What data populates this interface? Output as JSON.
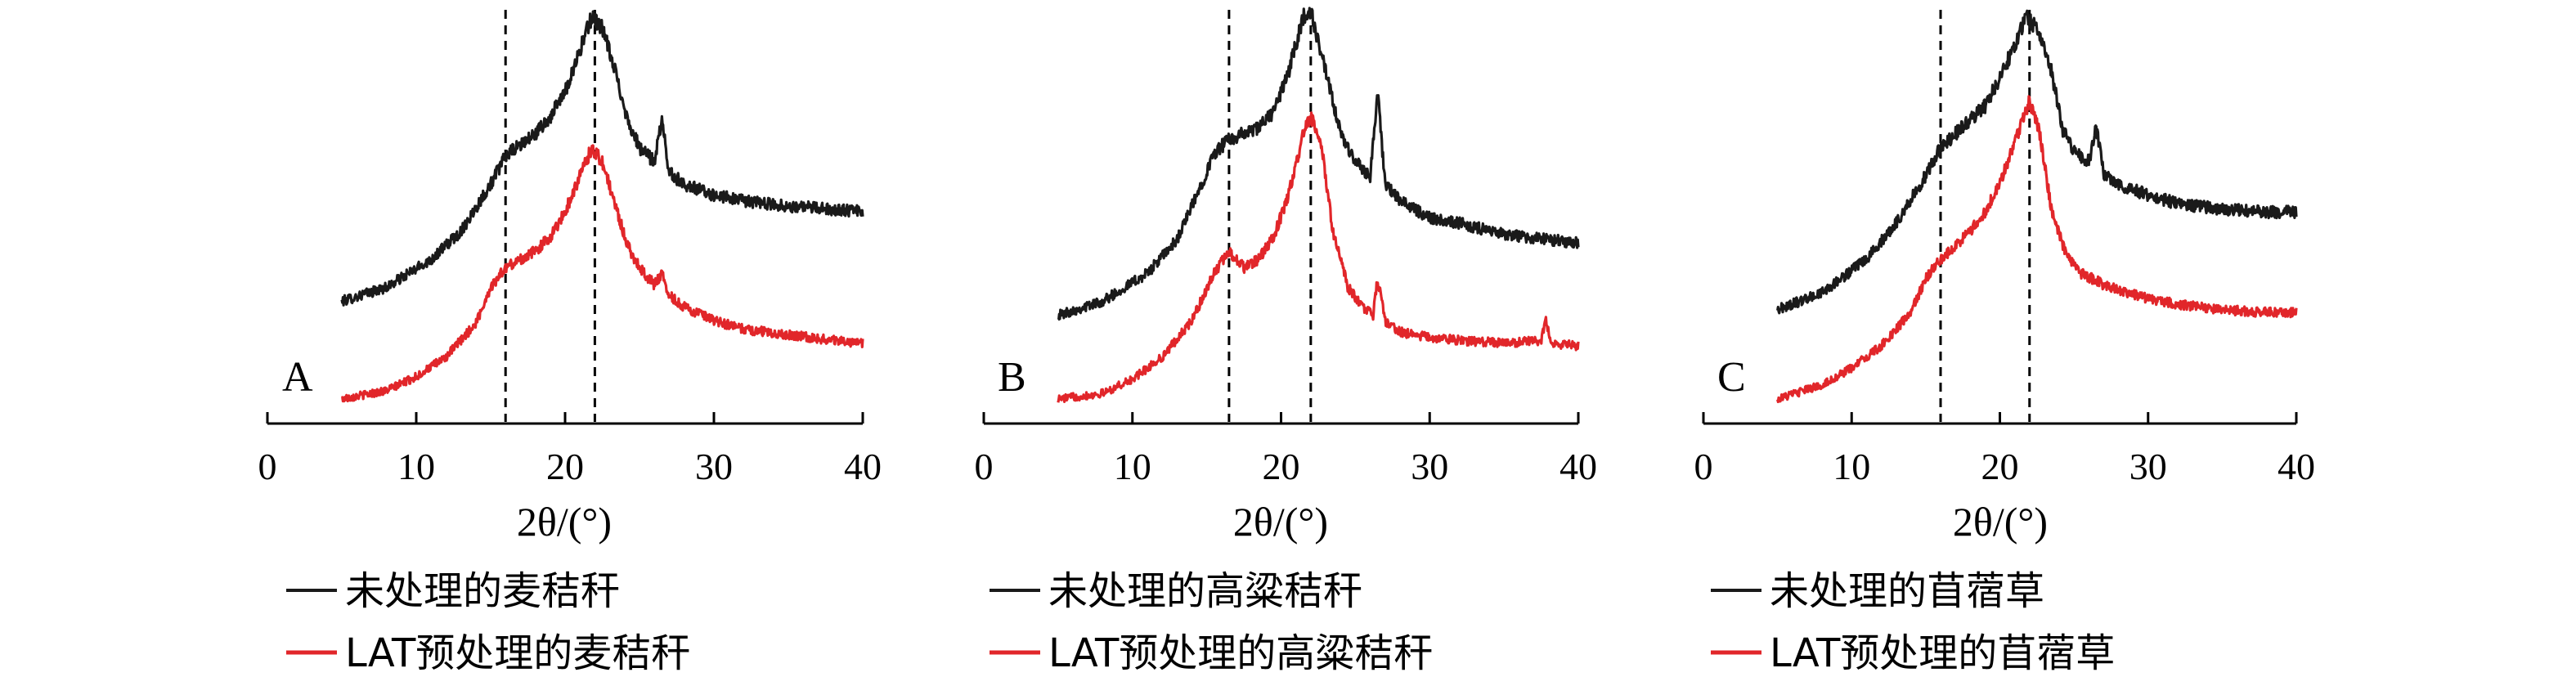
{
  "chart_data": [
    {
      "type": "line",
      "panel": "A",
      "xlabel": "2θ/(°)",
      "xlim": [
        0,
        40
      ],
      "xticks": [
        0,
        10,
        20,
        30,
        40
      ],
      "ylabel": "",
      "grid": false,
      "reference_lines_x": [
        16,
        22
      ],
      "series": [
        {
          "name": "未处理的麦秸秆",
          "color": "#1a1a1a",
          "points": [
            [
              5,
              0.4
            ],
            [
              8,
              0.45
            ],
            [
              11,
              0.55
            ],
            [
              13,
              0.65
            ],
            [
              15,
              0.82
            ],
            [
              16,
              0.92
            ],
            [
              17,
              0.96
            ],
            [
              18,
              1.0
            ],
            [
              19,
              1.06
            ],
            [
              20,
              1.15
            ],
            [
              21,
              1.3
            ],
            [
              21.8,
              1.42
            ],
            [
              22.5,
              1.38
            ],
            [
              23.5,
              1.2
            ],
            [
              24.2,
              1.05
            ],
            [
              25,
              0.95
            ],
            [
              26,
              0.9
            ],
            [
              26.5,
              1.05
            ],
            [
              27,
              0.86
            ],
            [
              28,
              0.82
            ],
            [
              30,
              0.78
            ],
            [
              32,
              0.76
            ],
            [
              35,
              0.74
            ],
            [
              38,
              0.73
            ],
            [
              40,
              0.72
            ]
          ]
        },
        {
          "name": "LAT预处理的麦秸秆",
          "color": "#e1262a",
          "points": [
            [
              5,
              0.05
            ],
            [
              8,
              0.08
            ],
            [
              10,
              0.13
            ],
            [
              12,
              0.2
            ],
            [
              14,
              0.32
            ],
            [
              15,
              0.45
            ],
            [
              16,
              0.52
            ],
            [
              17,
              0.55
            ],
            [
              18,
              0.58
            ],
            [
              19,
              0.63
            ],
            [
              20,
              0.72
            ],
            [
              21,
              0.85
            ],
            [
              21.8,
              0.95
            ],
            [
              22.5,
              0.9
            ],
            [
              23.5,
              0.72
            ],
            [
              24.2,
              0.6
            ],
            [
              25,
              0.52
            ],
            [
              26,
              0.46
            ],
            [
              26.5,
              0.5
            ],
            [
              27,
              0.42
            ],
            [
              28,
              0.38
            ],
            [
              30,
              0.33
            ],
            [
              32,
              0.3
            ],
            [
              35,
              0.28
            ],
            [
              38,
              0.26
            ],
            [
              40,
              0.25
            ]
          ]
        }
      ]
    },
    {
      "type": "line",
      "panel": "B",
      "xlabel": "2θ/(°)",
      "xlim": [
        0,
        40
      ],
      "xticks": [
        0,
        10,
        20,
        30,
        40
      ],
      "ylabel": "",
      "grid": false,
      "reference_lines_x": [
        16.5,
        22
      ],
      "series": [
        {
          "name": "未处理的高粱秸秆",
          "color": "#1a1a1a",
          "points": [
            [
              5,
              0.35
            ],
            [
              8,
              0.4
            ],
            [
              11,
              0.5
            ],
            [
              13,
              0.62
            ],
            [
              14.5,
              0.8
            ],
            [
              15.5,
              0.93
            ],
            [
              16.5,
              0.98
            ],
            [
              17.5,
              1.0
            ],
            [
              18.5,
              1.02
            ],
            [
              19.5,
              1.08
            ],
            [
              20.5,
              1.22
            ],
            [
              21.5,
              1.42
            ],
            [
              22,
              1.44
            ],
            [
              23,
              1.22
            ],
            [
              24,
              1.0
            ],
            [
              25,
              0.9
            ],
            [
              26,
              0.85
            ],
            [
              26.5,
              1.15
            ],
            [
              27,
              0.82
            ],
            [
              28,
              0.76
            ],
            [
              30,
              0.7
            ],
            [
              32,
              0.68
            ],
            [
              35,
              0.64
            ],
            [
              38,
              0.62
            ],
            [
              40,
              0.61
            ]
          ]
        },
        {
          "name": "LAT预处理的高粱秸秆",
          "color": "#e1262a",
          "points": [
            [
              5,
              0.05
            ],
            [
              8,
              0.07
            ],
            [
              10,
              0.12
            ],
            [
              12,
              0.2
            ],
            [
              14,
              0.33
            ],
            [
              15.5,
              0.5
            ],
            [
              16.5,
              0.58
            ],
            [
              17.5,
              0.52
            ],
            [
              18.5,
              0.55
            ],
            [
              19.5,
              0.63
            ],
            [
              20.5,
              0.78
            ],
            [
              21.5,
              1.0
            ],
            [
              22,
              1.06
            ],
            [
              22.7,
              0.96
            ],
            [
              23.5,
              0.65
            ],
            [
              24.5,
              0.45
            ],
            [
              25.5,
              0.38
            ],
            [
              26.2,
              0.35
            ],
            [
              26.5,
              0.48
            ],
            [
              27,
              0.33
            ],
            [
              28,
              0.29
            ],
            [
              30,
              0.27
            ],
            [
              32,
              0.26
            ],
            [
              35,
              0.25
            ],
            [
              37.5,
              0.26
            ],
            [
              37.8,
              0.34
            ],
            [
              38.2,
              0.25
            ],
            [
              40,
              0.24
            ]
          ]
        }
      ]
    },
    {
      "type": "line",
      "panel": "C",
      "xlabel": "2θ/(°)",
      "xlim": [
        0,
        40
      ],
      "xticks": [
        0,
        10,
        20,
        30,
        40
      ],
      "ylabel": "",
      "grid": false,
      "reference_lines_x": [
        16,
        22
      ],
      "series": [
        {
          "name": "未处理的苜蓿草",
          "color": "#1a1a1a",
          "points": [
            [
              5,
              0.37
            ],
            [
              8,
              0.43
            ],
            [
              11,
              0.55
            ],
            [
              13,
              0.68
            ],
            [
              15,
              0.85
            ],
            [
              16,
              0.95
            ],
            [
              17,
              1.0
            ],
            [
              18,
              1.05
            ],
            [
              19,
              1.1
            ],
            [
              20,
              1.2
            ],
            [
              21,
              1.32
            ],
            [
              21.8,
              1.42
            ],
            [
              22.5,
              1.38
            ],
            [
              23.5,
              1.22
            ],
            [
              24.2,
              1.02
            ],
            [
              25,
              0.94
            ],
            [
              26,
              0.9
            ],
            [
              26.5,
              1.02
            ],
            [
              27,
              0.86
            ],
            [
              28,
              0.82
            ],
            [
              30,
              0.78
            ],
            [
              32,
              0.75
            ],
            [
              35,
              0.73
            ],
            [
              38,
              0.72
            ],
            [
              40,
              0.72
            ]
          ]
        },
        {
          "name": "LAT预处理的苜蓿草",
          "color": "#e1262a",
          "points": [
            [
              5,
              0.05
            ],
            [
              8,
              0.1
            ],
            [
              10,
              0.16
            ],
            [
              12,
              0.24
            ],
            [
              14,
              0.36
            ],
            [
              15,
              0.48
            ],
            [
              16,
              0.55
            ],
            [
              17,
              0.6
            ],
            [
              18,
              0.65
            ],
            [
              19,
              0.72
            ],
            [
              20,
              0.82
            ],
            [
              21,
              0.97
            ],
            [
              22,
              1.12
            ],
            [
              22.7,
              1.0
            ],
            [
              23.5,
              0.72
            ],
            [
              24.5,
              0.56
            ],
            [
              25.5,
              0.5
            ],
            [
              27,
              0.46
            ],
            [
              28,
              0.44
            ],
            [
              30,
              0.41
            ],
            [
              32,
              0.39
            ],
            [
              35,
              0.37
            ],
            [
              38,
              0.36
            ],
            [
              40,
              0.36
            ]
          ]
        }
      ]
    }
  ],
  "panels": [
    {
      "label": "A",
      "legend": [
        "未处理的麦秸秆",
        "LAT预处理的麦秸秆"
      ]
    },
    {
      "label": "B",
      "legend": [
        "未处理的高粱秸秆",
        "LAT预处理的高粱秸秆"
      ]
    },
    {
      "label": "C",
      "legend": [
        "未处理的苜蓿草",
        "LAT预处理的苜蓿草"
      ]
    }
  ],
  "colors": {
    "untreated": "#1a1a1a",
    "treated": "#e1262a",
    "axis": "#000000"
  }
}
